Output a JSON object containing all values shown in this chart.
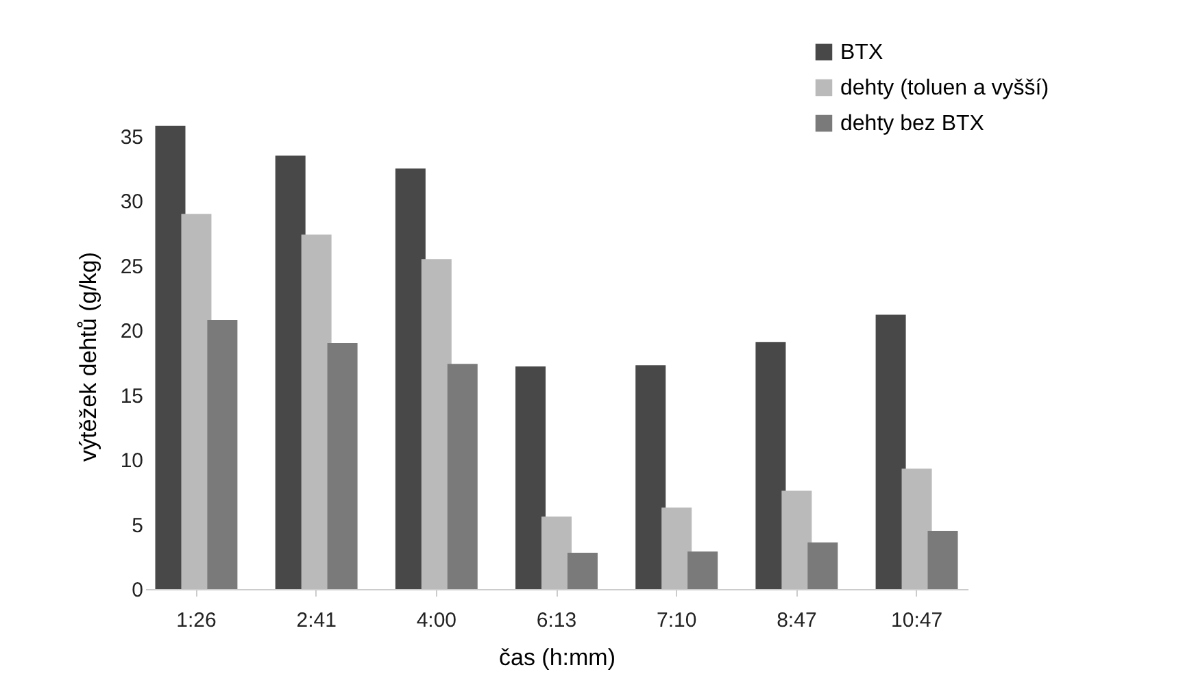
{
  "chart_data": {
    "type": "bar",
    "xlabel": "čas (h:mm)",
    "ylabel": "výtěžek dehtů (g/kg)",
    "categories": [
      "1:26",
      "2:41",
      "4:00",
      "6:13",
      "7:10",
      "8:47",
      "10:47"
    ],
    "series": [
      {
        "name": "BTX",
        "color": "#484848",
        "values": [
          35.8,
          33.5,
          32.5,
          17.2,
          17.3,
          19.1,
          21.2
        ]
      },
      {
        "name": "dehty (toluen a vyšší)",
        "color": "#bababa",
        "values": [
          29,
          27.4,
          25.5,
          5.6,
          6.3,
          7.6,
          9.3
        ]
      },
      {
        "name": "dehty bez BTX",
        "color": "#7a7a7a",
        "values": [
          20.8,
          19,
          17.4,
          2.8,
          2.9,
          3.6,
          4.5
        ]
      }
    ],
    "ylim": [
      0,
      36
    ],
    "yticks": [
      0,
      5,
      10,
      15,
      20,
      25,
      30,
      35
    ],
    "grid": false,
    "legend": "top right"
  }
}
